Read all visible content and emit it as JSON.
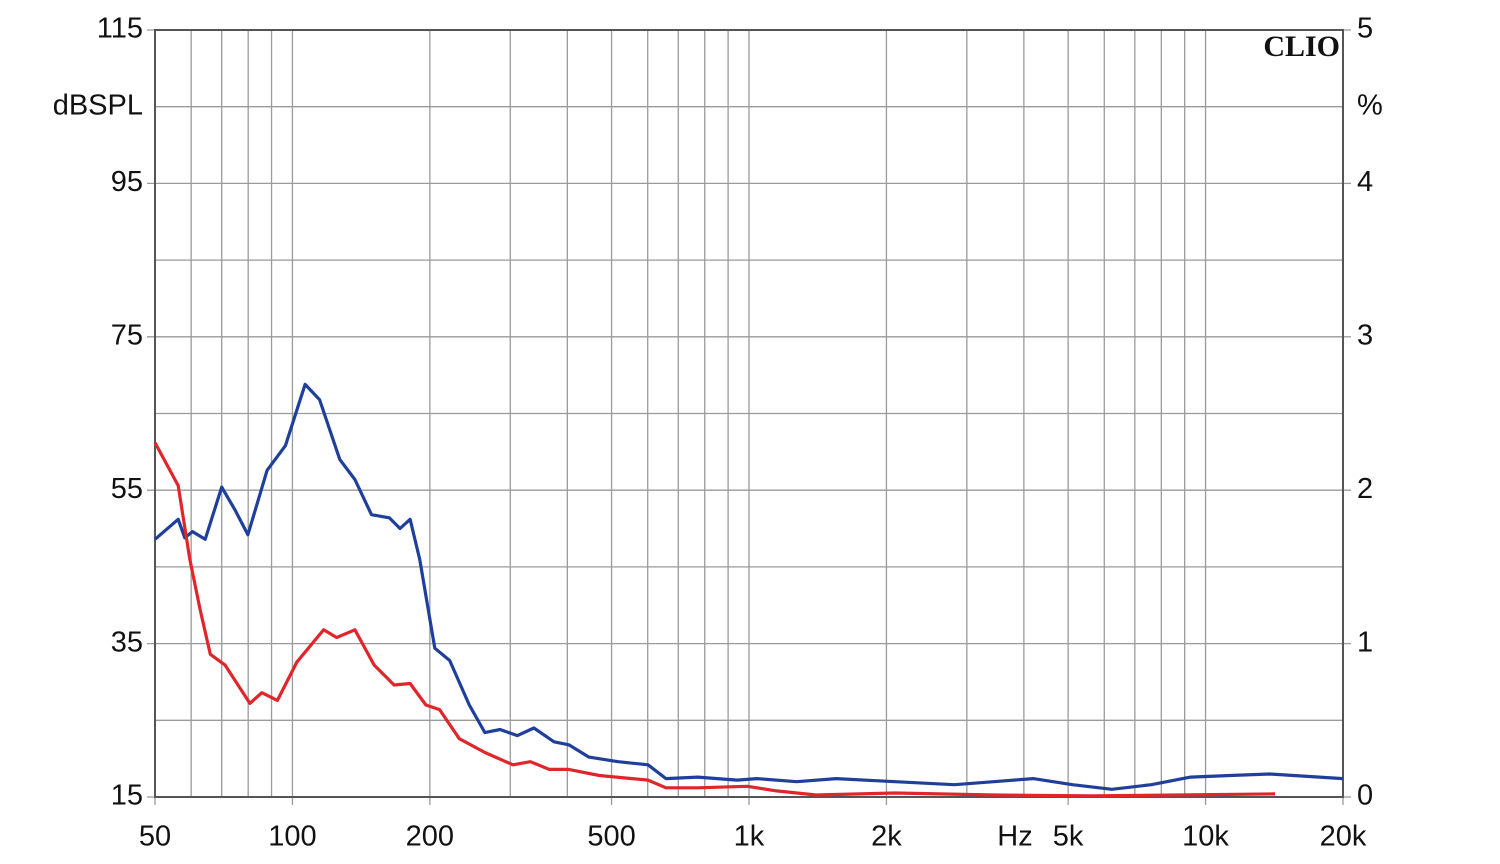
{
  "chart_data": {
    "type": "line",
    "watermark": "CLIO",
    "x_label": "Hz",
    "y_label": "dBSPL",
    "y2_label": "%",
    "log_x": true,
    "grid": true,
    "xlim": [
      50,
      20000
    ],
    "xticks": [
      50,
      100,
      200,
      500,
      {
        "value": 1000,
        "label": "1k"
      },
      {
        "value": 2000,
        "label": "2k"
      },
      {
        "value": 5000,
        "label": "5k"
      },
      {
        "value": 10000,
        "label": "10k"
      },
      {
        "value": 20000,
        "label": "20k"
      }
    ],
    "xminor": [
      60,
      70,
      80,
      90,
      300,
      400,
      600,
      700,
      800,
      900,
      3000,
      4000,
      6000,
      7000,
      8000,
      9000
    ],
    "ylim": [
      15,
      115
    ],
    "yticks": [
      15,
      35,
      55,
      75,
      95,
      115
    ],
    "yminor": [
      25,
      45,
      65,
      85,
      105
    ],
    "y2lim": [
      0,
      5
    ],
    "y2ticks": [
      0,
      1,
      2,
      3,
      4,
      5
    ],
    "series": [
      {
        "color": "#1f3f9a",
        "axis": "y2",
        "x": [
          50,
          56.2,
          58.1,
          60.4,
          64.4,
          70,
          74.9,
          79.9,
          88,
          96.5,
          106.6,
          114.7,
          127,
          137,
          149,
          163,
          172,
          181,
          190,
          205,
          221,
          244,
          264,
          285,
          311,
          338,
          374,
          403,
          446,
          517,
          601,
          658,
          772,
          942,
          1041,
          1271,
          1553,
          2092,
          2818,
          3435,
          4190,
          5112,
          6235,
          7605,
          9275,
          11313,
          13800,
          20000
        ],
        "values": [
          1.68,
          1.81,
          1.69,
          1.73,
          1.68,
          2.02,
          1.87,
          1.71,
          2.13,
          2.29,
          2.69,
          2.59,
          2.2,
          2.07,
          1.84,
          1.82,
          1.75,
          1.81,
          1.55,
          0.97,
          0.89,
          0.6,
          0.42,
          0.44,
          0.4,
          0.45,
          0.36,
          0.34,
          0.26,
          0.23,
          0.21,
          0.12,
          0.13,
          0.11,
          0.12,
          0.1,
          0.12,
          0.1,
          0.08,
          0.1,
          0.12,
          0.08,
          0.05,
          0.08,
          0.13,
          0.14,
          0.15,
          0.12
        ]
      },
      {
        "color": "#e0262b",
        "axis": "y2",
        "x": [
          50,
          56.2,
          59.6,
          62.8,
          66.1,
          71.2,
          80.7,
          85.7,
          92.7,
          102.3,
          117,
          125,
          137,
          151,
          167,
          181,
          196,
          210,
          232,
          264,
          304,
          332,
          365,
          403,
          470,
          601,
          658,
          772,
          991,
          1149,
          1403,
          2092,
          3435,
          5642,
          14191
        ],
        "values": [
          2.31,
          2.03,
          1.55,
          1.22,
          0.93,
          0.86,
          0.61,
          0.68,
          0.63,
          0.88,
          1.09,
          1.04,
          1.09,
          0.86,
          0.73,
          0.74,
          0.6,
          0.57,
          0.38,
          0.29,
          0.21,
          0.23,
          0.18,
          0.18,
          0.14,
          0.11,
          0.06,
          0.06,
          0.07,
          0.04,
          0.013,
          0.026,
          0.013,
          0.007,
          0.02
        ]
      }
    ]
  }
}
